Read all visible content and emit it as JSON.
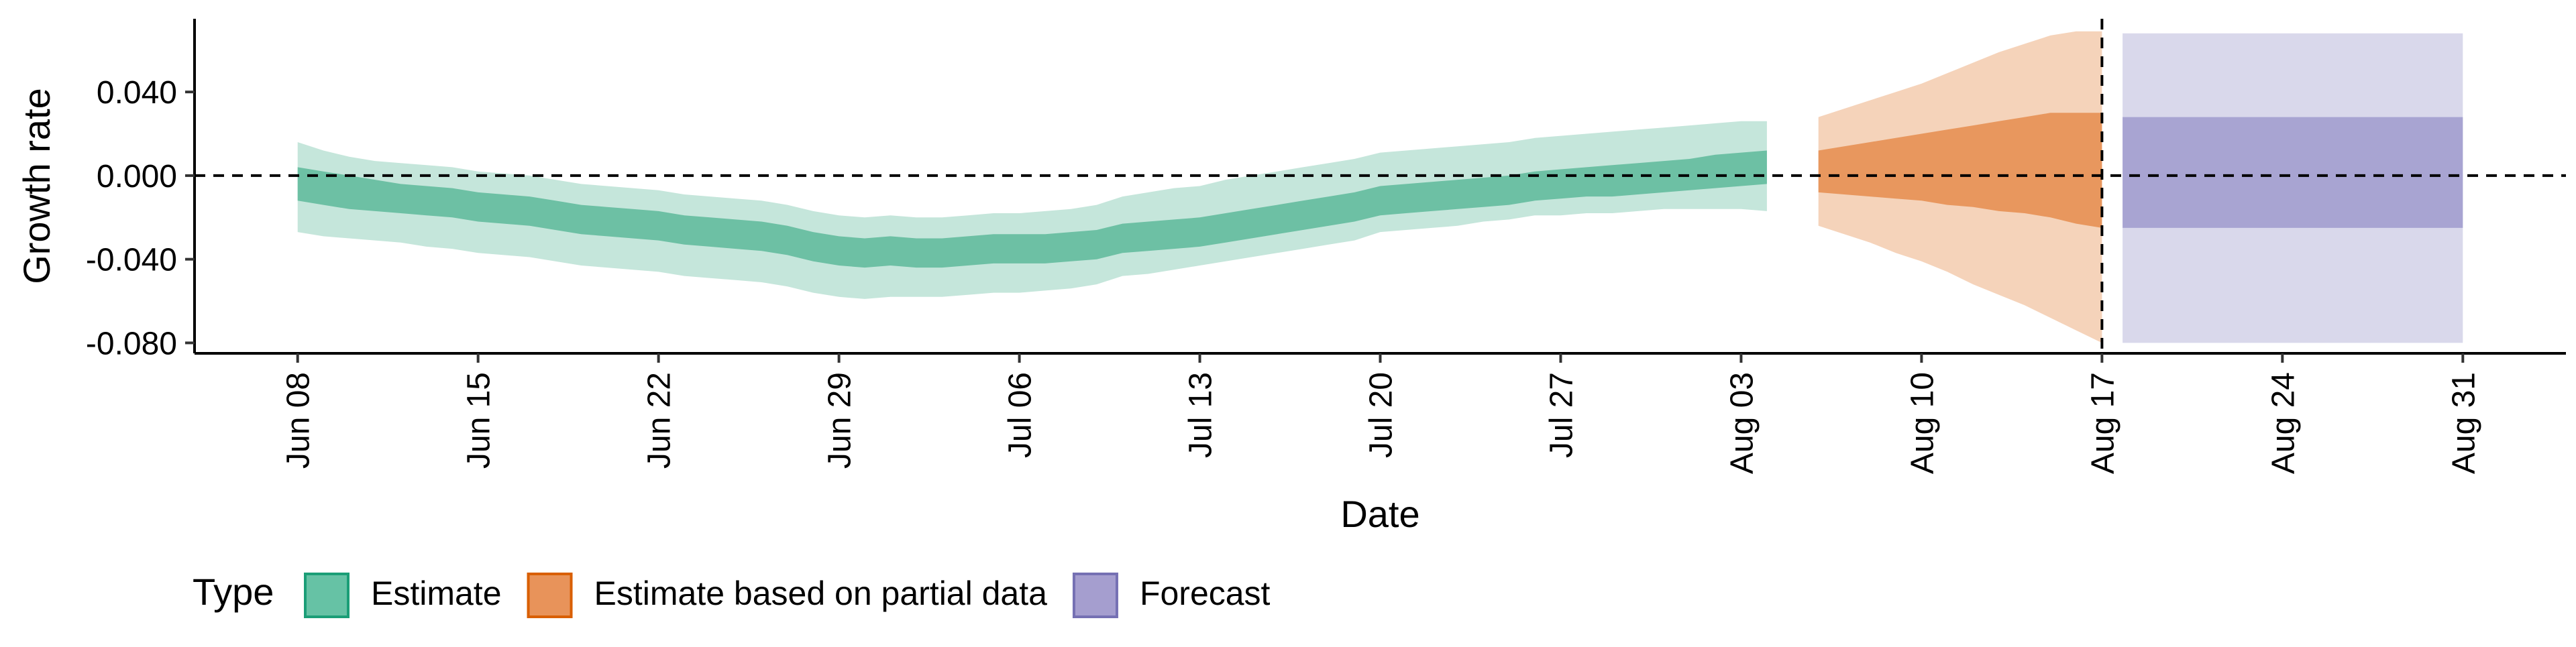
{
  "chart_data": {
    "type": "area",
    "xlabel": "Date",
    "ylabel": "Growth rate",
    "ylim": [
      -0.085,
      0.075
    ],
    "y_ticks": [
      {
        "value": 0.04,
        "label": "0.040"
      },
      {
        "value": 0.0,
        "label": "0.000"
      },
      {
        "value": -0.04,
        "label": "-0.040"
      },
      {
        "value": -0.08,
        "label": "-0.080"
      }
    ],
    "x_ticks": [
      {
        "day": 0,
        "label": "Jun 08"
      },
      {
        "day": 7,
        "label": "Jun 15"
      },
      {
        "day": 14,
        "label": "Jun 22"
      },
      {
        "day": 21,
        "label": "Jun 29"
      },
      {
        "day": 28,
        "label": "Jul 06"
      },
      {
        "day": 35,
        "label": "Jul 13"
      },
      {
        "day": 42,
        "label": "Jul 20"
      },
      {
        "day": 49,
        "label": "Jul 27"
      },
      {
        "day": 56,
        "label": "Aug 03"
      },
      {
        "day": 63,
        "label": "Aug 10"
      },
      {
        "day": 70,
        "label": "Aug 17"
      },
      {
        "day": 77,
        "label": "Aug 24"
      },
      {
        "day": 84,
        "label": "Aug 31"
      }
    ],
    "xlim": [
      -4,
      88
    ],
    "reference_lines": {
      "horizontal_y": 0.0,
      "vertical_day": 70
    },
    "legend": {
      "title": "Type",
      "position": "bottom",
      "entries": [
        {
          "label": "Estimate",
          "color": "#66c2a5",
          "border": "#1b9e77"
        },
        {
          "label": "Estimate based on partial data",
          "color": "#e8935a",
          "border": "#d95f02"
        },
        {
          "label": "Forecast",
          "color": "#a59ecf",
          "border": "#7570b3"
        }
      ]
    },
    "series": [
      {
        "name": "Estimate",
        "color_inner": "#6dc0a4",
        "color_outer": "#c5e6db",
        "x": [
          0,
          1,
          2,
          3,
          4,
          5,
          6,
          7,
          8,
          9,
          10,
          11,
          12,
          13,
          14,
          15,
          16,
          17,
          18,
          19,
          20,
          21,
          22,
          23,
          24,
          25,
          26,
          27,
          28,
          29,
          30,
          31,
          32,
          33,
          34,
          35,
          36,
          37,
          38,
          39,
          40,
          41,
          42,
          43,
          44,
          45,
          46,
          47,
          48,
          49,
          50,
          51,
          52,
          53,
          54,
          55,
          56,
          57
        ],
        "median": [
          -0.004,
          -0.006,
          -0.008,
          -0.01,
          -0.011,
          -0.012,
          -0.013,
          -0.015,
          -0.016,
          -0.017,
          -0.019,
          -0.021,
          -0.022,
          -0.023,
          -0.024,
          -0.026,
          -0.027,
          -0.028,
          -0.029,
          -0.031,
          -0.034,
          -0.036,
          -0.037,
          -0.036,
          -0.037,
          -0.037,
          -0.036,
          -0.035,
          -0.035,
          -0.035,
          -0.034,
          -0.033,
          -0.03,
          -0.029,
          -0.028,
          -0.027,
          -0.025,
          -0.023,
          -0.021,
          -0.019,
          -0.017,
          -0.015,
          -0.012,
          -0.011,
          -0.01,
          -0.009,
          -0.008,
          -0.007,
          -0.005,
          -0.004,
          -0.003,
          -0.003,
          -0.002,
          -0.001,
          0.0,
          0.002,
          0.003,
          0.004
        ],
        "inner_low": [
          -0.012,
          -0.014,
          -0.016,
          -0.017,
          -0.018,
          -0.019,
          -0.02,
          -0.022,
          -0.023,
          -0.024,
          -0.026,
          -0.028,
          -0.029,
          -0.03,
          -0.031,
          -0.033,
          -0.034,
          -0.035,
          -0.036,
          -0.038,
          -0.041,
          -0.043,
          -0.044,
          -0.043,
          -0.044,
          -0.044,
          -0.043,
          -0.042,
          -0.042,
          -0.042,
          -0.041,
          -0.04,
          -0.037,
          -0.036,
          -0.035,
          -0.034,
          -0.032,
          -0.03,
          -0.028,
          -0.026,
          -0.024,
          -0.022,
          -0.019,
          -0.018,
          -0.017,
          -0.016,
          -0.015,
          -0.014,
          -0.012,
          -0.011,
          -0.01,
          -0.01,
          -0.009,
          -0.008,
          -0.007,
          -0.006,
          -0.005,
          -0.004
        ],
        "inner_high": [
          0.004,
          0.002,
          0.0,
          -0.002,
          -0.004,
          -0.005,
          -0.006,
          -0.008,
          -0.009,
          -0.01,
          -0.012,
          -0.014,
          -0.015,
          -0.016,
          -0.017,
          -0.019,
          -0.02,
          -0.021,
          -0.022,
          -0.024,
          -0.027,
          -0.029,
          -0.03,
          -0.029,
          -0.03,
          -0.03,
          -0.029,
          -0.028,
          -0.028,
          -0.028,
          -0.027,
          -0.026,
          -0.023,
          -0.022,
          -0.021,
          -0.02,
          -0.018,
          -0.016,
          -0.014,
          -0.012,
          -0.01,
          -0.008,
          -0.005,
          -0.004,
          -0.003,
          -0.002,
          -0.001,
          0.0,
          0.002,
          0.003,
          0.004,
          0.005,
          0.006,
          0.007,
          0.008,
          0.01,
          0.011,
          0.012
        ],
        "outer_low": [
          -0.027,
          -0.029,
          -0.03,
          -0.031,
          -0.032,
          -0.034,
          -0.035,
          -0.037,
          -0.038,
          -0.039,
          -0.041,
          -0.043,
          -0.044,
          -0.045,
          -0.046,
          -0.048,
          -0.049,
          -0.05,
          -0.051,
          -0.053,
          -0.056,
          -0.058,
          -0.059,
          -0.058,
          -0.058,
          -0.058,
          -0.057,
          -0.056,
          -0.056,
          -0.055,
          -0.054,
          -0.052,
          -0.048,
          -0.047,
          -0.045,
          -0.043,
          -0.041,
          -0.039,
          -0.037,
          -0.035,
          -0.033,
          -0.031,
          -0.027,
          -0.026,
          -0.025,
          -0.024,
          -0.022,
          -0.021,
          -0.019,
          -0.019,
          -0.018,
          -0.018,
          -0.017,
          -0.016,
          -0.016,
          -0.016,
          -0.016,
          -0.017
        ],
        "outer_high": [
          0.016,
          0.012,
          0.009,
          0.007,
          0.006,
          0.005,
          0.004,
          0.002,
          0.001,
          0.0,
          -0.002,
          -0.004,
          -0.005,
          -0.006,
          -0.007,
          -0.009,
          -0.01,
          -0.011,
          -0.012,
          -0.014,
          -0.017,
          -0.019,
          -0.02,
          -0.019,
          -0.02,
          -0.02,
          -0.019,
          -0.018,
          -0.018,
          -0.017,
          -0.016,
          -0.014,
          -0.01,
          -0.008,
          -0.006,
          -0.005,
          -0.002,
          0.0,
          0.002,
          0.004,
          0.006,
          0.008,
          0.011,
          0.012,
          0.013,
          0.014,
          0.015,
          0.016,
          0.018,
          0.019,
          0.02,
          0.021,
          0.022,
          0.023,
          0.024,
          0.025,
          0.026,
          0.026
        ]
      },
      {
        "name": "Estimate based on partial data",
        "color_inner": "#e8975e",
        "color_outer": "#f5d3ba",
        "x": [
          59,
          60,
          61,
          62,
          63,
          64,
          65,
          66,
          67,
          68,
          69,
          70
        ],
        "median": [
          0.002,
          0.003,
          0.004,
          0.005,
          0.006,
          0.005,
          0.006,
          0.006,
          0.007,
          0.008,
          0.008,
          0.009
        ],
        "inner_low": [
          -0.008,
          -0.009,
          -0.01,
          -0.011,
          -0.012,
          -0.014,
          -0.015,
          -0.017,
          -0.018,
          -0.02,
          -0.023,
          -0.025
        ],
        "inner_high": [
          0.012,
          0.014,
          0.016,
          0.018,
          0.02,
          0.022,
          0.024,
          0.026,
          0.028,
          0.03,
          0.03,
          0.03
        ],
        "outer_low": [
          -0.024,
          -0.028,
          -0.032,
          -0.037,
          -0.041,
          -0.046,
          -0.052,
          -0.057,
          -0.062,
          -0.068,
          -0.074,
          -0.08
        ],
        "outer_high": [
          0.028,
          0.032,
          0.036,
          0.04,
          0.044,
          0.049,
          0.054,
          0.059,
          0.063,
          0.067,
          0.069,
          0.069
        ]
      },
      {
        "name": "Forecast",
        "color_inner": "#a8a4d2",
        "color_outer": "#d9d8eb",
        "x": [
          70.8,
          84
        ],
        "median": [
          0.0,
          0.0
        ],
        "inner_low": [
          -0.025,
          -0.025
        ],
        "inner_high": [
          0.028,
          0.028
        ],
        "outer_low": [
          -0.08,
          -0.08
        ],
        "outer_high": [
          0.068,
          0.068
        ]
      }
    ]
  }
}
